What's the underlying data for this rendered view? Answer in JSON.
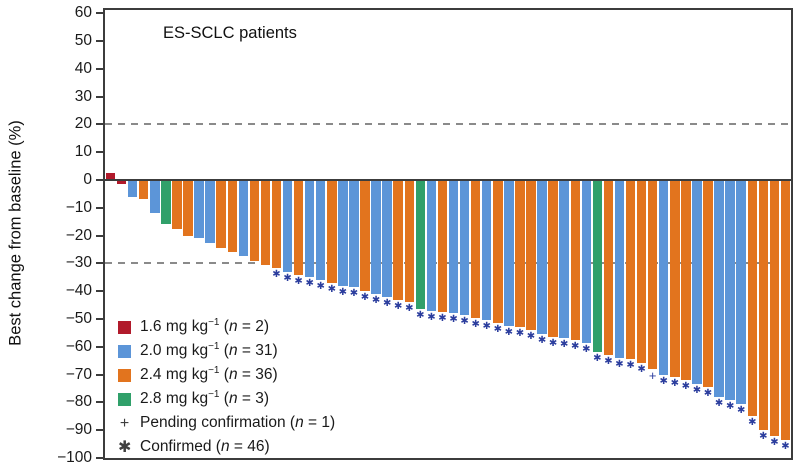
{
  "chart_data": {
    "type": "bar",
    "subtype": "waterfall",
    "title": "ES-SCLC patients",
    "ylabel": "Best change from baseline (%)",
    "ylim": [
      -100,
      60
    ],
    "grid": false,
    "y_ticks": [
      60,
      50,
      40,
      30,
      20,
      10,
      0,
      -10,
      -20,
      -30,
      -40,
      -50,
      -60,
      -70,
      -80,
      -90,
      -100
    ],
    "y_tick_labels": [
      "60",
      "50",
      "40",
      "30",
      "20",
      "10",
      "0",
      "−10",
      "−20",
      "−30",
      "−40",
      "−50",
      "−60",
      "−70",
      "−80",
      "−90",
      "−100"
    ],
    "reference_lines": [
      20,
      -30
    ],
    "dose_colors": {
      "1.6": "#b11a2b",
      "2.0": "#5c95d8",
      "2.4": "#e2741e",
      "2.8": "#30a06a"
    },
    "marker_color": "#2c3e9e",
    "axis_color": "#3c3c3c",
    "ref_line_color": "#8a8a8a",
    "bars": [
      {
        "dose": "1.6",
        "value": 2.5,
        "marker": ""
      },
      {
        "dose": "1.6",
        "value": -1.5,
        "marker": ""
      },
      {
        "dose": "2.0",
        "value": -6,
        "marker": ""
      },
      {
        "dose": "2.4",
        "value": -7,
        "marker": ""
      },
      {
        "dose": "2.0",
        "value": -12,
        "marker": ""
      },
      {
        "dose": "2.8",
        "value": -16,
        "marker": ""
      },
      {
        "dose": "2.4",
        "value": -17.5,
        "marker": ""
      },
      {
        "dose": "2.4",
        "value": -20,
        "marker": ""
      },
      {
        "dose": "2.0",
        "value": -21,
        "marker": ""
      },
      {
        "dose": "2.0",
        "value": -22.5,
        "marker": ""
      },
      {
        "dose": "2.4",
        "value": -24.5,
        "marker": ""
      },
      {
        "dose": "2.4",
        "value": -26,
        "marker": ""
      },
      {
        "dose": "2.0",
        "value": -27.5,
        "marker": ""
      },
      {
        "dose": "2.4",
        "value": -29,
        "marker": ""
      },
      {
        "dose": "2.4",
        "value": -30.5,
        "marker": ""
      },
      {
        "dose": "2.4",
        "value": -31.5,
        "marker": "*"
      },
      {
        "dose": "2.0",
        "value": -33,
        "marker": "*"
      },
      {
        "dose": "2.4",
        "value": -34,
        "marker": "*"
      },
      {
        "dose": "2.0",
        "value": -35,
        "marker": "*"
      },
      {
        "dose": "2.0",
        "value": -36,
        "marker": "*"
      },
      {
        "dose": "2.4",
        "value": -37,
        "marker": "*"
      },
      {
        "dose": "2.0",
        "value": -38,
        "marker": "*"
      },
      {
        "dose": "2.0",
        "value": -38.5,
        "marker": "*"
      },
      {
        "dose": "2.4",
        "value": -40,
        "marker": "*"
      },
      {
        "dose": "2.0",
        "value": -41,
        "marker": "*"
      },
      {
        "dose": "2.0",
        "value": -42,
        "marker": "*"
      },
      {
        "dose": "2.4",
        "value": -43,
        "marker": "*"
      },
      {
        "dose": "2.4",
        "value": -44,
        "marker": "*"
      },
      {
        "dose": "2.8",
        "value": -46.5,
        "marker": "*"
      },
      {
        "dose": "2.0",
        "value": -47,
        "marker": "*"
      },
      {
        "dose": "2.4",
        "value": -47.5,
        "marker": "*"
      },
      {
        "dose": "2.0",
        "value": -48,
        "marker": "*"
      },
      {
        "dose": "2.0",
        "value": -48.5,
        "marker": "*"
      },
      {
        "dose": "2.4",
        "value": -49.5,
        "marker": "*"
      },
      {
        "dose": "2.0",
        "value": -50.5,
        "marker": "*"
      },
      {
        "dose": "2.4",
        "value": -51.5,
        "marker": "*"
      },
      {
        "dose": "2.0",
        "value": -52.5,
        "marker": "*"
      },
      {
        "dose": "2.4",
        "value": -53,
        "marker": "*"
      },
      {
        "dose": "2.4",
        "value": -54,
        "marker": "*"
      },
      {
        "dose": "2.0",
        "value": -55.5,
        "marker": "*"
      },
      {
        "dose": "2.4",
        "value": -56.5,
        "marker": "*"
      },
      {
        "dose": "2.0",
        "value": -57,
        "marker": "*"
      },
      {
        "dose": "2.4",
        "value": -57.5,
        "marker": "*"
      },
      {
        "dose": "2.0",
        "value": -58.5,
        "marker": "*"
      },
      {
        "dose": "2.8",
        "value": -62,
        "marker": "*"
      },
      {
        "dose": "2.4",
        "value": -63,
        "marker": "*"
      },
      {
        "dose": "2.0",
        "value": -64,
        "marker": "*"
      },
      {
        "dose": "2.4",
        "value": -64.5,
        "marker": "*"
      },
      {
        "dose": "2.4",
        "value": -66,
        "marker": "*"
      },
      {
        "dose": "2.4",
        "value": -68,
        "marker": "+"
      },
      {
        "dose": "2.0",
        "value": -70,
        "marker": "*"
      },
      {
        "dose": "2.4",
        "value": -71,
        "marker": "*"
      },
      {
        "dose": "2.4",
        "value": -72,
        "marker": "*"
      },
      {
        "dose": "2.0",
        "value": -73.5,
        "marker": "*"
      },
      {
        "dose": "2.4",
        "value": -74.5,
        "marker": "*"
      },
      {
        "dose": "2.0",
        "value": -78,
        "marker": "*"
      },
      {
        "dose": "2.0",
        "value": -79,
        "marker": "*"
      },
      {
        "dose": "2.0",
        "value": -80.5,
        "marker": "*"
      },
      {
        "dose": "2.4",
        "value": -85,
        "marker": "*"
      },
      {
        "dose": "2.4",
        "value": -90,
        "marker": "*"
      },
      {
        "dose": "2.4",
        "value": -92,
        "marker": "*"
      },
      {
        "dose": "2.4",
        "value": -93.5,
        "marker": "*"
      }
    ]
  },
  "legend": {
    "items": [
      {
        "symbol": "square",
        "color": "#b11a2b",
        "prefix": "1.6 mg kg",
        "sup": "−1",
        "mid": " (",
        "n": "n",
        "tail": " = 2)"
      },
      {
        "symbol": "square",
        "color": "#5c95d8",
        "prefix": "2.0 mg kg",
        "sup": "−1",
        "mid": " (",
        "n": "n",
        "tail": " = 31)"
      },
      {
        "symbol": "square",
        "color": "#e2741e",
        "prefix": "2.4 mg kg",
        "sup": "−1",
        "mid": " (",
        "n": "n",
        "tail": " = 36)"
      },
      {
        "symbol": "square",
        "color": "#30a06a",
        "prefix": "2.8 mg kg",
        "sup": "−1",
        "mid": " (",
        "n": "n",
        "tail": " = 3)"
      },
      {
        "symbol": "glyph",
        "glyph": "+",
        "prefix": "Pending confirmation",
        "sup": "",
        "mid": " (",
        "n": "n",
        "tail": " = 1)"
      },
      {
        "symbol": "glyph",
        "glyph": "✱",
        "prefix": "Confirmed",
        "sup": "",
        "mid": " (",
        "n": "n",
        "tail": " = 46)"
      }
    ]
  }
}
